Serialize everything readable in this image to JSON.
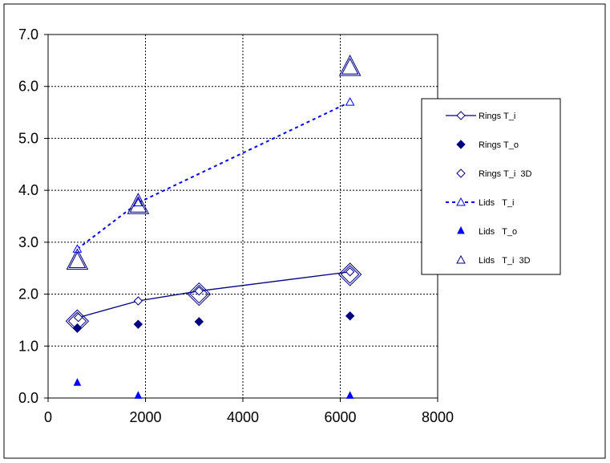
{
  "chart_data": {
    "type": "scatter",
    "title": "",
    "xlabel": "",
    "ylabel": "",
    "xlim": [
      0,
      8000
    ],
    "ylim": [
      0,
      7
    ],
    "x_ticks": [
      0,
      2000,
      4000,
      6000,
      8000
    ],
    "y_ticks": [
      "0.0",
      "1.0",
      "2.0",
      "3.0",
      "4.0",
      "5.0",
      "6.0",
      "7.0"
    ],
    "grid": true,
    "legend_position": "right",
    "series": [
      {
        "name": "Rings T_i",
        "color": "#000080",
        "marker": "diamond-open-small",
        "line": "solid",
        "points": [
          [
            620,
            1.55
          ],
          [
            1850,
            1.87
          ],
          [
            3100,
            2.06
          ],
          [
            6200,
            2.43
          ]
        ]
      },
      {
        "name": "Rings T_o",
        "color": "#000080",
        "marker": "diamond-filled",
        "line": "none",
        "points": [
          [
            600,
            1.35
          ],
          [
            1850,
            1.42
          ],
          [
            3100,
            1.47
          ],
          [
            6200,
            1.58
          ]
        ]
      },
      {
        "name": "Rings T_i  3D",
        "color": "#000080",
        "marker": "diamond-open-large",
        "line": "none",
        "points": [
          [
            600,
            1.48
          ],
          [
            3100,
            2.0
          ],
          [
            6200,
            2.38
          ]
        ]
      },
      {
        "name": "Lids   T_i",
        "color": "#0000ff",
        "marker": "triangle-open-small",
        "line": "dashed",
        "points": [
          [
            600,
            2.87
          ],
          [
            1850,
            3.76
          ],
          [
            6200,
            5.7
          ]
        ]
      },
      {
        "name": "Lids   T_o",
        "color": "#0000ff",
        "marker": "triangle-filled",
        "line": "none",
        "points": [
          [
            600,
            0.29
          ],
          [
            1850,
            0.04
          ],
          [
            6200,
            0.04
          ]
        ]
      },
      {
        "name": "Lids   T_i  3D",
        "color": "#000080",
        "marker": "triangle-open-large",
        "line": "none",
        "points": [
          [
            600,
            2.65
          ],
          [
            1850,
            3.72
          ],
          [
            6200,
            6.38
          ]
        ]
      }
    ]
  }
}
